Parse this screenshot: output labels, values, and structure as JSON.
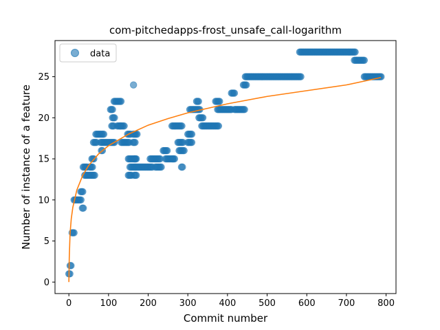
{
  "chart_data": {
    "type": "scatter",
    "title": "com-pitchedapps-frost_unsafe_call-logarithm",
    "xlabel": "Commit number",
    "ylabel": "Number of instance of a feature",
    "xlim": [
      -35,
      825
    ],
    "ylim": [
      -1.4,
      29.4
    ],
    "xticks": [
      0,
      100,
      200,
      300,
      400,
      500,
      600,
      700,
      800
    ],
    "yticks": [
      0,
      5,
      10,
      15,
      20,
      25
    ],
    "grid": false,
    "legend": {
      "placement": "top-left",
      "entries": [
        "data"
      ]
    },
    "series": [
      {
        "name": "data",
        "kind": "scatter",
        "color": "#1f77b4",
        "segments": [
          [
            0,
            4,
            1
          ],
          [
            3,
            7,
            2
          ],
          [
            8,
            14,
            6
          ],
          [
            13,
            32,
            10
          ],
          [
            30,
            36,
            11
          ],
          [
            34,
            38,
            9
          ],
          [
            36,
            48,
            14
          ],
          [
            40,
            66,
            13
          ],
          [
            58,
            64,
            15
          ],
          [
            52,
            60,
            14
          ],
          [
            62,
            70,
            17
          ],
          [
            68,
            90,
            18
          ],
          [
            82,
            86,
            16
          ],
          [
            80,
            115,
            17
          ],
          [
            105,
            110,
            21
          ],
          [
            110,
            115,
            20
          ],
          [
            108,
            113,
            19
          ],
          [
            114,
            132,
            22
          ],
          [
            122,
            140,
            19
          ],
          [
            132,
            152,
            17
          ],
          [
            148,
            156,
            18
          ],
          [
            150,
            158,
            13
          ],
          [
            150,
            168,
            15
          ],
          [
            154,
            168,
            14
          ],
          [
            162,
            172,
            18
          ],
          [
            162,
            168,
            17
          ],
          [
            165,
            170,
            13
          ],
          [
            165,
            170,
            15
          ],
          [
            168,
            212,
            14
          ],
          [
            205,
            230,
            15
          ],
          [
            218,
            235,
            14
          ],
          [
            238,
            248,
            16
          ],
          [
            244,
            268,
            15
          ],
          [
            260,
            285,
            19
          ],
          [
            275,
            288,
            17
          ],
          [
            278,
            292,
            16
          ],
          [
            284,
            288,
            14
          ],
          [
            300,
            310,
            18
          ],
          [
            300,
            310,
            17
          ],
          [
            305,
            330,
            21
          ],
          [
            322,
            328,
            22
          ],
          [
            328,
            340,
            20
          ],
          [
            335,
            378,
            19
          ],
          [
            370,
            382,
            22
          ],
          [
            375,
            410,
            21
          ],
          [
            410,
            418,
            23
          ],
          [
            418,
            445,
            21
          ],
          [
            440,
            448,
            24
          ],
          [
            445,
            585,
            25
          ],
          [
            582,
            722,
            28
          ],
          [
            720,
            745,
            27
          ],
          [
            745,
            788,
            25
          ]
        ],
        "outliers": [
          [
            163,
            24
          ],
          [
            262,
            15
          ],
          [
            130,
            19
          ]
        ]
      },
      {
        "name": "",
        "kind": "line",
        "color": "#ff7f0e",
        "model": "logarithmic",
        "x": [
          0,
          1,
          3,
          6,
          10,
          20,
          35,
          50,
          75,
          100,
          150,
          200,
          250,
          300,
          400,
          500,
          600,
          700,
          787
        ],
        "y": [
          0,
          3.0,
          5.9,
          7.7,
          9.1,
          11.2,
          13.0,
          14.2,
          15.6,
          16.6,
          18.0,
          19.1,
          19.9,
          20.6,
          21.7,
          22.6,
          23.3,
          24.0,
          24.9
        ]
      }
    ]
  }
}
